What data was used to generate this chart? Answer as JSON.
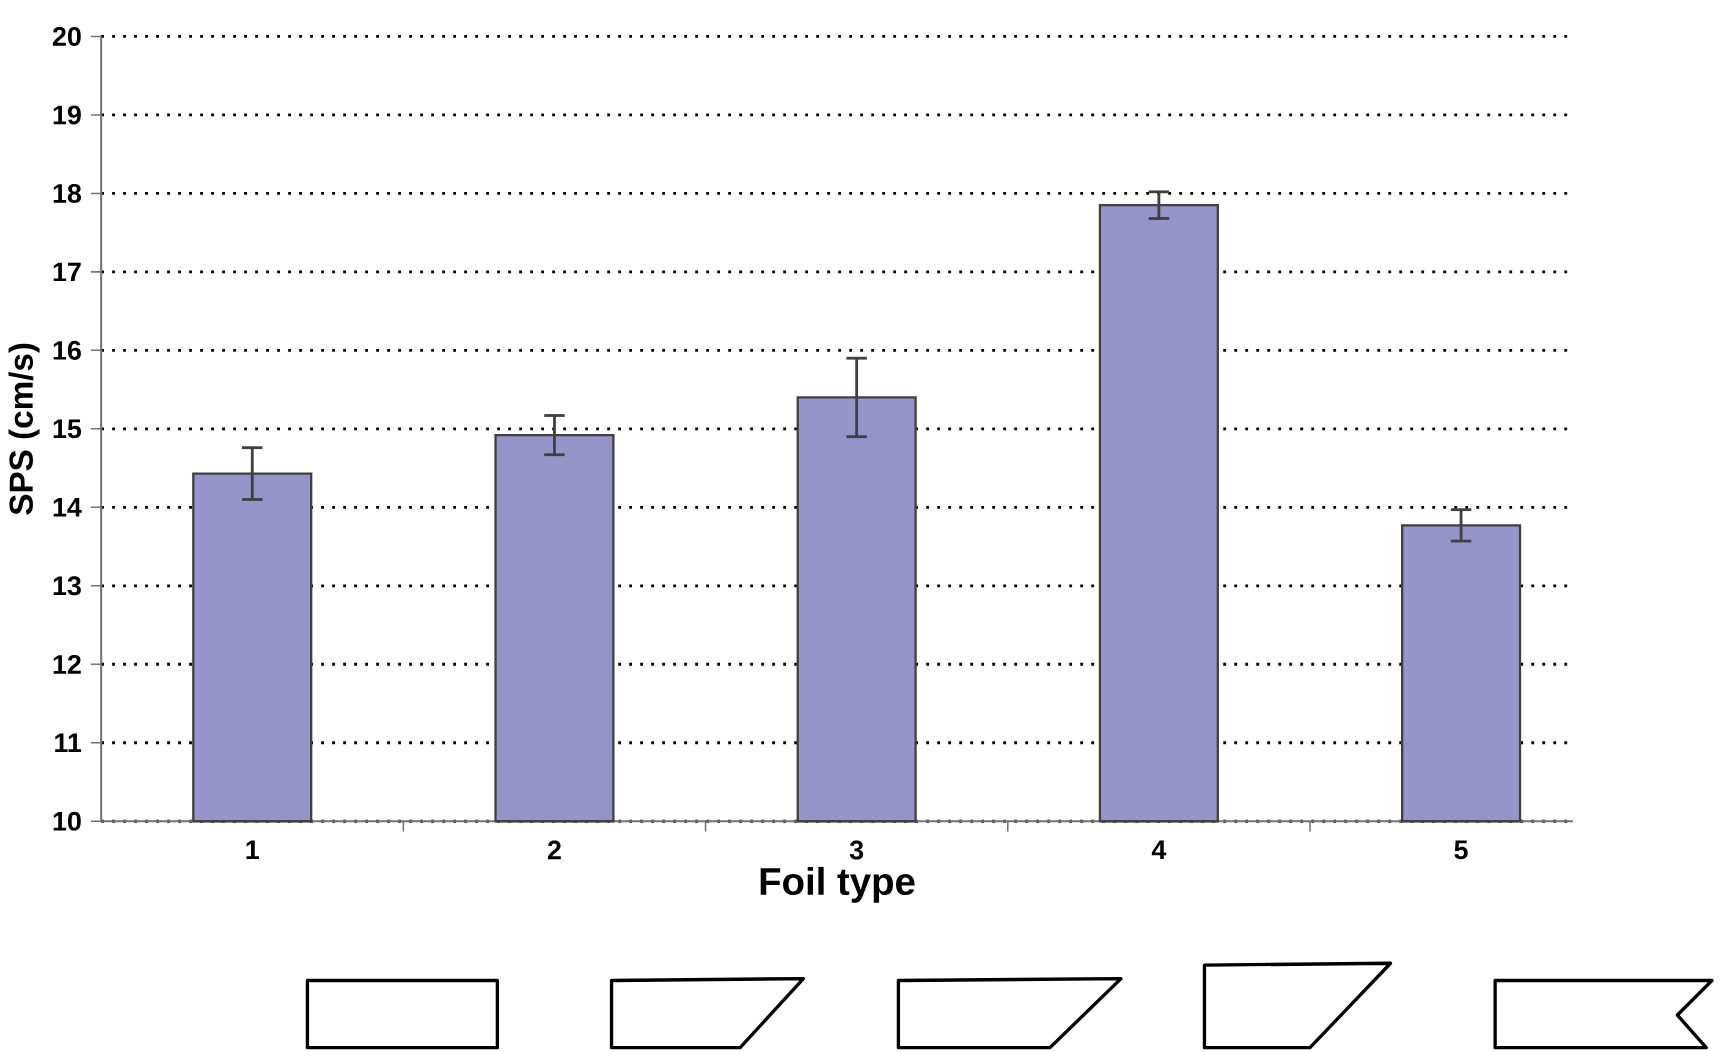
{
  "chart_data": {
    "type": "bar",
    "xlabel": "Foil type",
    "ylabel": "SPS (cm/s)",
    "categories": [
      "1",
      "2",
      "3",
      "4",
      "5"
    ],
    "values": [
      14.43,
      14.92,
      15.4,
      17.85,
      13.77
    ],
    "errors": [
      0.33,
      0.25,
      0.5,
      0.17,
      0.2
    ],
    "color": "#9595c9",
    "ylim": [
      10,
      20
    ],
    "yticks": [
      10,
      11,
      12,
      13,
      14,
      15,
      16,
      17,
      18,
      19,
      20
    ],
    "grid": "y"
  }
}
